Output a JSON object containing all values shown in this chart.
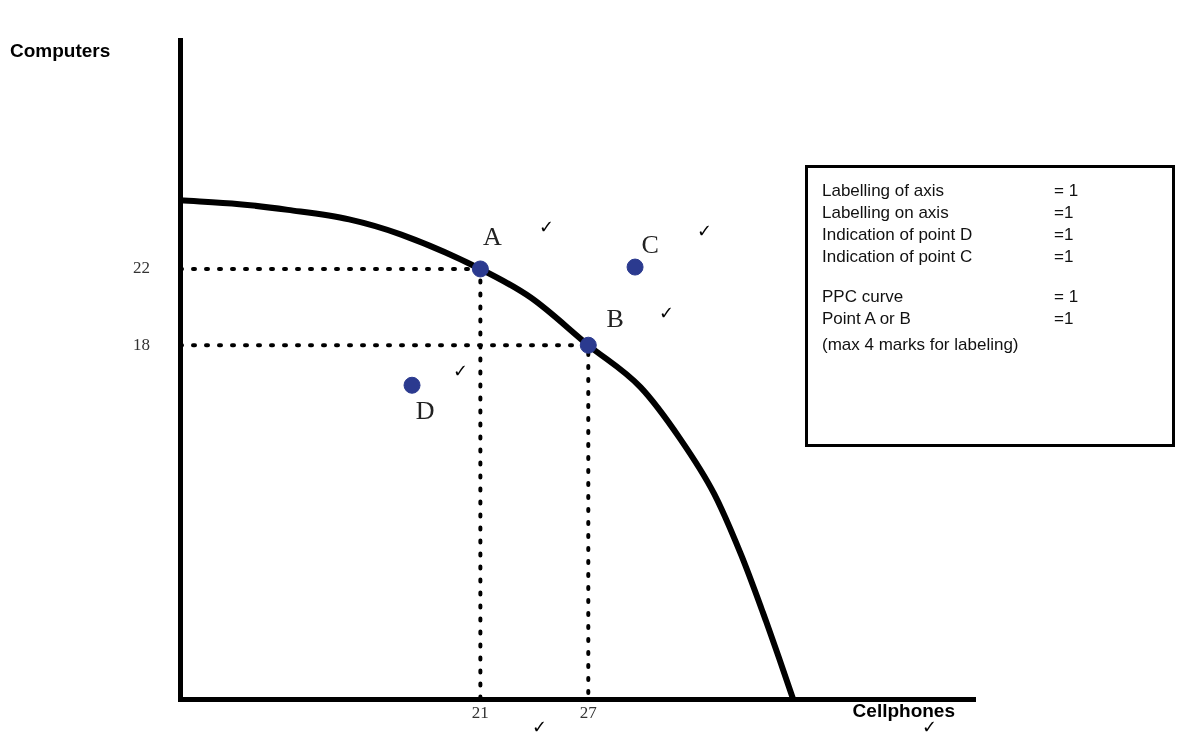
{
  "chart_data": {
    "type": "scatter",
    "xlabel": "Cellphones",
    "ylabel": "Computers",
    "xlim": [
      4.3,
      48.5
    ],
    "ylim": [
      -0.6,
      34
    ],
    "xticks": [
      21,
      27
    ],
    "yticks": [
      18,
      22
    ],
    "series": [
      {
        "type": "line",
        "color": "#000000",
        "line_style": "solid",
        "marker": "none",
        "x": [
          4.3,
          7.6,
          10.3,
          13.7,
          16.6,
          21,
          23.8,
          27,
          29.9,
          32.1,
          34,
          35.5,
          36.7,
          37.6,
          38.4
        ],
        "values": [
          25.6,
          25.4,
          25.1,
          24.6,
          23.8,
          22,
          20.5,
          18,
          15.8,
          13.1,
          10.2,
          7,
          4,
          1.6,
          -0.6
        ]
      },
      {
        "type": "line",
        "color": "#000000",
        "line_style": "dotted",
        "marker": "none",
        "x": [
          4.3,
          21,
          21
        ],
        "values": [
          22,
          22,
          -0.6
        ]
      },
      {
        "type": "line",
        "color": "#000000",
        "line_style": "dotted",
        "marker": "none",
        "x": [
          4.3,
          27,
          27
        ],
        "values": [
          18,
          18,
          -0.6
        ]
      },
      {
        "color": "#2b3a8f",
        "marker": "circle",
        "x": [
          21,
          27,
          29.6,
          17.2
        ],
        "values": [
          22,
          18,
          22.1,
          15.9
        ]
      }
    ],
    "annotations": [
      {
        "text": "A",
        "x": 21,
        "y": 22
      },
      {
        "text": "B",
        "x": 27,
        "y": 18
      },
      {
        "text": "C",
        "x": 29.6,
        "y": 22.1
      },
      {
        "text": "D",
        "x": 17.2,
        "y": 15.9
      },
      "✓",
      "✓",
      "✓",
      "✓",
      "Labelling of axis",
      "= 1",
      "Labelling on axis",
      "=1",
      "Indication of point D",
      "=1",
      "Indication of point C",
      "=1",
      "PPC curve",
      "= 1",
      "Point A or B",
      "=1",
      "(max 4 marks for labeling)",
      "✓",
      "✓"
    ]
  }
}
